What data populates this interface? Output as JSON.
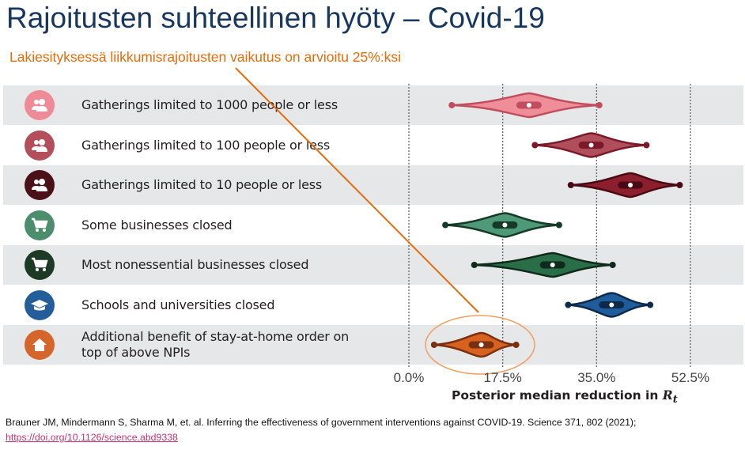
{
  "title": "Rajoitusten suhteellinen hyöty – Covid-19",
  "subtitle": "Lakiesityksessä liikkumisrajoitusten vaikutus on arvioitu 25%:ksi",
  "citation": "Brauner JM, Mindermann S, Sharma M, et. al. Inferring the effectiveness of government interventions against COVID-19. Science 371, 802 (2021);",
  "link": "https://doi.org/10.1126/science.abd9338",
  "colors": {
    "title": "#17375e",
    "annotation": "#e46c0a",
    "link": "#c8326e",
    "row_stripe": "#e6e7e9"
  },
  "chart_data": {
    "type": "violin",
    "xlabel": "Posterior median reduction in R",
    "xlabel_subscript": "t",
    "xlim": [
      0,
      52.5
    ],
    "xticks": [
      "0.0%",
      "17.5%",
      "35.0%",
      "52.5%"
    ],
    "xtick_values": [
      0,
      17.5,
      35,
      52.5
    ],
    "grid": "vertical dotted",
    "categories": [
      {
        "label": "Gatherings limited to 1000 people or less",
        "icon": "people-icon",
        "icon_color": "#ef8b96",
        "fill": "#ef8d99",
        "stroke": "#c04e5e",
        "median": 22.4,
        "min": 8.0,
        "max": 35.5
      },
      {
        "label": "Gatherings limited to 100 people or less",
        "icon": "people-icon",
        "icon_color": "#b24f5b",
        "fill": "#b04e5c",
        "stroke": "#7a1a28",
        "median": 34.0,
        "min": 23.5,
        "max": 44.3
      },
      {
        "label": "Gatherings limited to 10 people or less",
        "icon": "people-icon",
        "icon_color": "#4a1218",
        "fill": "#8c1f2e",
        "stroke": "#4a0a14",
        "median": 41.3,
        "min": 30.2,
        "max": 50.5
      },
      {
        "label": "Some businesses closed",
        "icon": "shopping-cart-icon",
        "icon_color": "#4c8d6e",
        "fill": "#4e9a78",
        "stroke": "#163a28",
        "median": 17.9,
        "min": 6.8,
        "max": 28.0
      },
      {
        "label": "Most nonessential businesses closed",
        "icon": "shopping-cart-icon",
        "icon_color": "#1c3a26",
        "fill": "#2a6e48",
        "stroke": "#0e2a1a",
        "median": 26.8,
        "min": 12.2,
        "max": 38.0
      },
      {
        "label": "Schools and universities closed",
        "icon": "graduation-cap-icon",
        "icon_color": "#235e9a",
        "fill": "#1f5c9c",
        "stroke": "#0e2a4a",
        "median": 37.8,
        "min": 29.7,
        "max": 45.0
      },
      {
        "label": "Additional benefit of stay-at-home order on top of above NPIs",
        "icon": "house-icon",
        "icon_color": "#d4652b",
        "fill": "#d8611f",
        "stroke": "#7a3010",
        "median": 13.5,
        "min": 4.7,
        "max": 20.0
      }
    ],
    "annotation": {
      "text_ref": "subtitle",
      "highlights": "Additional benefit of stay-at-home order on top of above NPIs"
    }
  }
}
